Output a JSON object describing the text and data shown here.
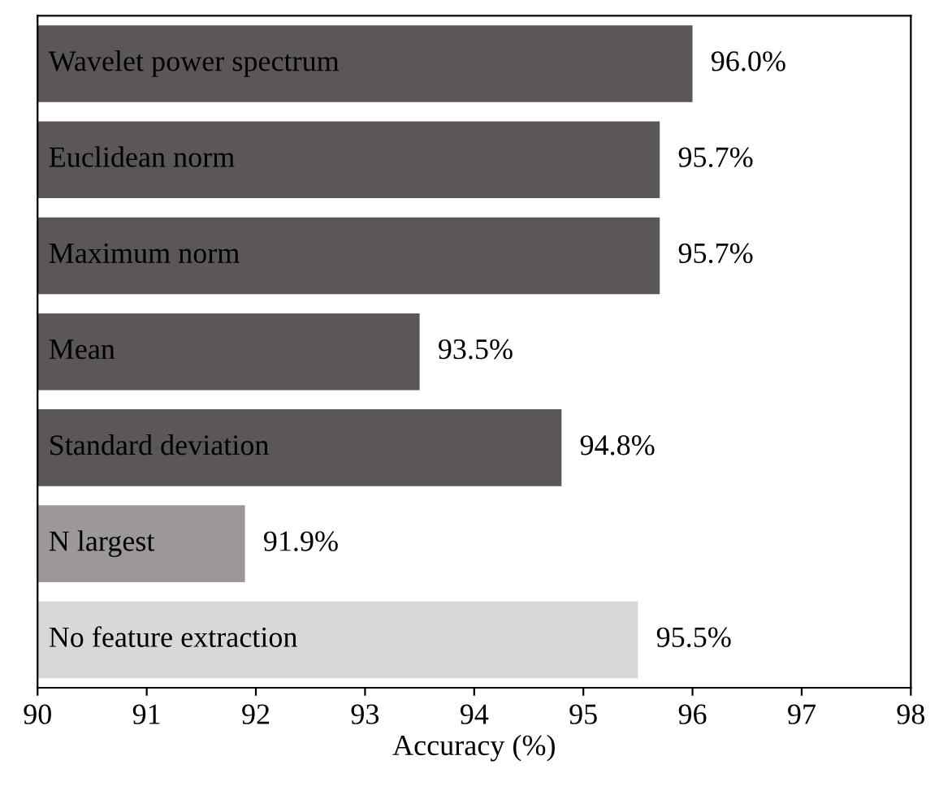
{
  "chart_data": {
    "type": "bar",
    "orientation": "horizontal",
    "xlabel": "Accuracy (%)",
    "categories": [
      "Wavelet power spectrum",
      "Euclidean norm",
      "Maximum norm",
      "Mean",
      "Standard deviation",
      "N largest",
      "No feature extraction"
    ],
    "values": [
      96.0,
      95.7,
      95.7,
      93.5,
      94.8,
      91.9,
      95.5
    ],
    "colors": [
      "#5b5756",
      "#5b5756",
      "#5b5756",
      "#5b5756",
      "#5b5756",
      "#9b9897",
      "#d9d8d8"
    ],
    "value_labels": [
      "96.0%",
      "95.7%",
      "95.7%",
      "93.5%",
      "94.8%",
      "91.9%",
      "95.5%"
    ],
    "xlim": [
      90,
      98
    ],
    "xticks": [
      90,
      91,
      92,
      93,
      94,
      95,
      96,
      97,
      98
    ],
    "grid": false,
    "legend": false
  }
}
